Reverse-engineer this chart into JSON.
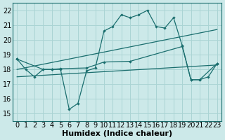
{
  "xlabel": "Humidex (Indice chaleur)",
  "bg_color": "#cce9e9",
  "grid_color": "#aad4d4",
  "line_color": "#1a6e6e",
  "xlim": [
    -0.5,
    23.5
  ],
  "ylim": [
    14.5,
    22.5
  ],
  "yticks": [
    15,
    16,
    17,
    18,
    19,
    20,
    21,
    22
  ],
  "xticks": [
    0,
    1,
    2,
    3,
    4,
    5,
    6,
    7,
    8,
    9,
    10,
    11,
    12,
    13,
    14,
    15,
    16,
    17,
    18,
    19,
    20,
    21,
    22,
    23
  ],
  "line1_x": [
    0,
    1,
    2,
    3,
    4,
    5,
    6,
    7,
    8,
    9,
    10,
    11,
    12,
    13,
    14,
    15,
    16,
    17,
    18,
    19,
    20,
    21,
    22,
    23
  ],
  "line1_y": [
    18.7,
    18.0,
    17.5,
    18.0,
    18.0,
    18.0,
    15.3,
    15.7,
    17.9,
    18.1,
    20.6,
    20.9,
    21.7,
    21.5,
    21.7,
    22.0,
    20.9,
    20.8,
    21.5,
    19.6,
    17.3,
    17.3,
    17.5,
    18.4
  ],
  "line2_x": [
    0,
    23
  ],
  "line2_y": [
    17.5,
    18.3
  ],
  "line3_x": [
    0,
    23
  ],
  "line3_y": [
    18.0,
    20.7
  ],
  "line4_x": [
    0,
    3,
    4,
    5,
    8,
    10,
    13,
    19,
    20,
    21,
    23
  ],
  "line4_y": [
    18.7,
    18.0,
    18.0,
    18.05,
    18.1,
    18.5,
    18.55,
    19.55,
    17.3,
    17.3,
    18.4
  ],
  "font_size_tick": 7,
  "font_size_label": 8
}
